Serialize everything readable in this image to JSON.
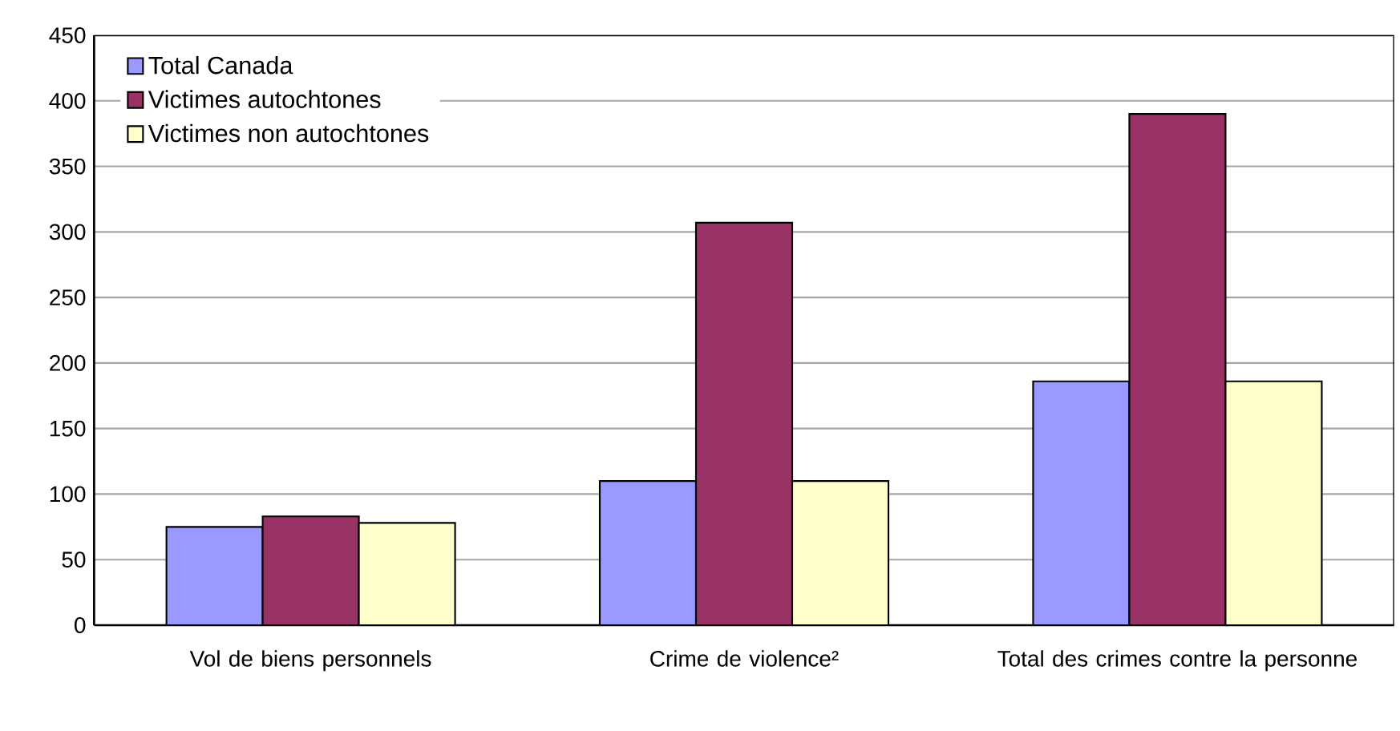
{
  "chart_data": {
    "type": "bar",
    "categories": [
      "Vol de biens personnels",
      "Crime de violence²",
      "Total des crimes contre la personne"
    ],
    "series": [
      {
        "name": "Total Canada",
        "color": "#9999ff",
        "values": [
          75,
          110,
          186
        ]
      },
      {
        "name": "Victimes autochtones",
        "color": "#993366",
        "values": [
          83,
          307,
          390
        ]
      },
      {
        "name": "Victimes non autochtones",
        "color": "#ffffcc",
        "values": [
          78,
          110,
          186
        ]
      }
    ],
    "ylim": [
      0,
      450
    ],
    "yticks": [
      0,
      50,
      100,
      150,
      200,
      250,
      300,
      350,
      400,
      450
    ],
    "grid": "y",
    "legend": "top left"
  }
}
